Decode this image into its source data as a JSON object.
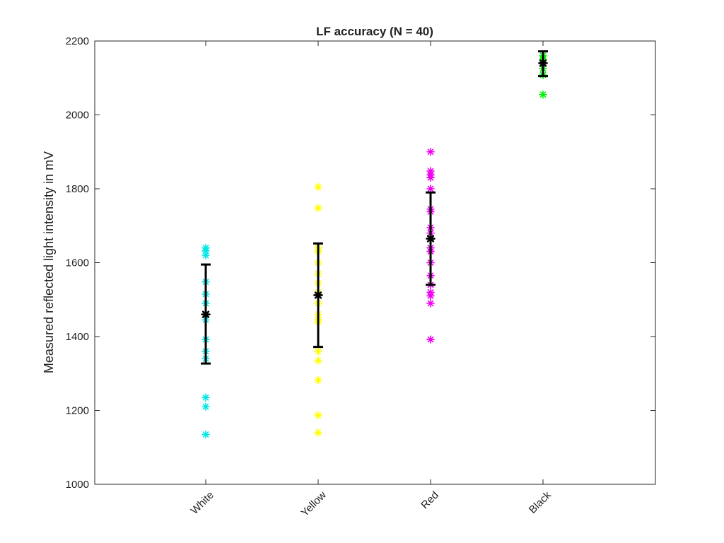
{
  "chart_data": {
    "type": "scatter",
    "title": "LF accuracy (N = 40)",
    "xlabel": "",
    "ylabel": "Measured reflected light intensity in mV",
    "ylim": [
      1000,
      2200
    ],
    "yticks": [
      1000,
      1200,
      1400,
      1600,
      1800,
      2000,
      2200
    ],
    "categories": [
      "White",
      "Yellow",
      "Red",
      "Black"
    ],
    "grid": false,
    "series": [
      {
        "category": "White",
        "color": "#00e5e5",
        "points": [
          1640,
          1632,
          1620,
          1548,
          1515,
          1490,
          1460,
          1445,
          1392,
          1360,
          1340,
          1235,
          1210,
          1135
        ],
        "mean": 1460,
        "error_low": 1327,
        "error_high": 1595
      },
      {
        "category": "Yellow",
        "color": "#ffff00",
        "points": [
          1805,
          1748,
          1640,
          1630,
          1600,
          1570,
          1545,
          1520,
          1490,
          1460,
          1445,
          1440,
          1360,
          1335,
          1282,
          1187,
          1140
        ],
        "mean": 1512,
        "error_low": 1372,
        "error_high": 1652
      },
      {
        "category": "Red",
        "color": "#ee00ee",
        "points": [
          1900,
          1848,
          1838,
          1830,
          1800,
          1745,
          1738,
          1695,
          1680,
          1640,
          1630,
          1600,
          1565,
          1540,
          1520,
          1510,
          1490,
          1392
        ],
        "mean": 1665,
        "error_low": 1540,
        "error_high": 1790
      },
      {
        "category": "Black",
        "color": "#00ee00",
        "points": [
          2160,
          2150,
          2140,
          2125,
          2108,
          2055
        ],
        "mean": 2140,
        "error_low": 2105,
        "error_high": 2172
      }
    ],
    "mean_marker_color": "#000000",
    "errorbar_color": "#000000"
  }
}
